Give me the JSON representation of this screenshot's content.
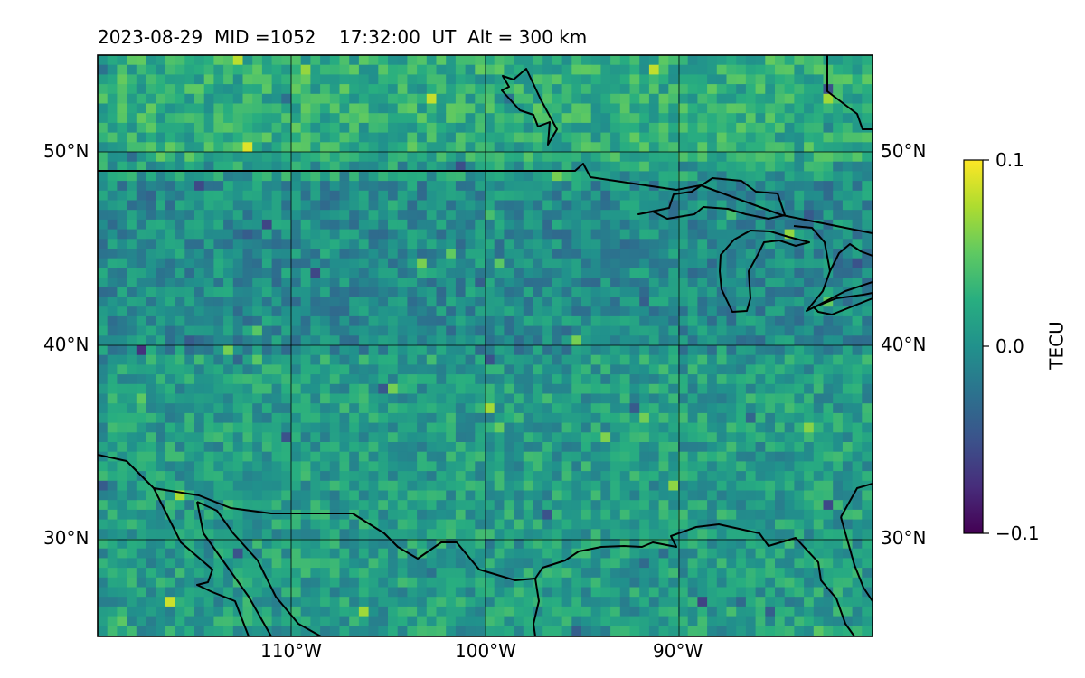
{
  "header": {
    "date": "2023-08-29",
    "mid_text": "MID =1052",
    "time_text": "17:32:00  UT",
    "alt_text": "Alt = 300 km"
  },
  "axes": {
    "lat_labels": [
      "50°N",
      "40°N",
      "30°N"
    ],
    "lon_labels": [
      "110°W",
      "100°W",
      "90°W"
    ]
  },
  "colorbar": {
    "label": "TECU",
    "ticks": [
      "0.1",
      "0.0",
      "−0.1"
    ],
    "min": -0.1,
    "max": 0.1,
    "colormap": "viridis"
  },
  "map_data": {
    "projection": "PlateCarree",
    "lon_range": [
      -120,
      -80
    ],
    "lat_range": [
      25,
      55
    ],
    "gridlines": true,
    "field": "TEC perturbation",
    "colors": {
      "background_field": "#2f8a8c",
      "coastline": "#000000",
      "grid": "#000000"
    }
  }
}
